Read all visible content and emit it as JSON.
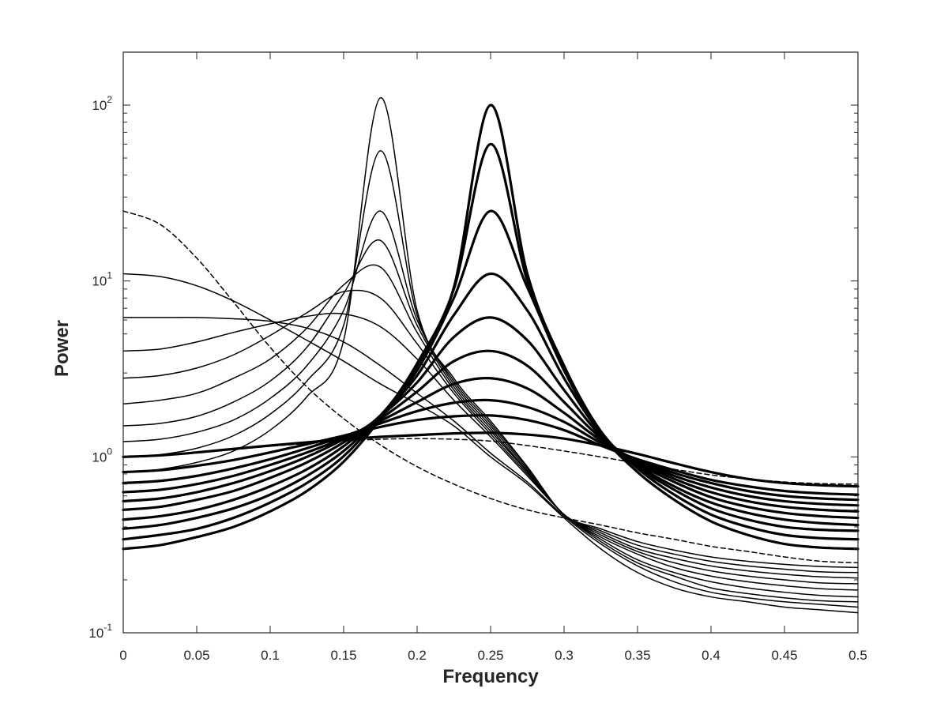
{
  "chart_data": {
    "type": "line",
    "title": "",
    "xlabel": "Frequency",
    "ylabel": "Power",
    "xlim": [
      0,
      0.5
    ],
    "ylim": [
      0.1,
      200
    ],
    "yscale": "log",
    "grid": false,
    "legend": "none",
    "colors": {
      "line": "#000000",
      "axis": "#262626",
      "background": "#ffffff"
    },
    "x_ticks": [
      "0",
      "0.05",
      "0.1",
      "0.15",
      "0.2",
      "0.25",
      "0.3",
      "0.35",
      "0.4",
      "0.45",
      "0.5"
    ],
    "y_ticks": [
      {
        "base": "10",
        "exp": "-1",
        "value": 0.1
      },
      {
        "base": "10",
        "exp": "0",
        "value": 1
      },
      {
        "base": "10",
        "exp": "1",
        "value": 10
      },
      {
        "base": "10",
        "exp": "2",
        "value": 100
      }
    ],
    "x": [
      0,
      0.025,
      0.05,
      0.075,
      0.1,
      0.125,
      0.15,
      0.175,
      0.2,
      0.225,
      0.25,
      0.275,
      0.3,
      0.325,
      0.35,
      0.375,
      0.4,
      0.425,
      0.45,
      0.475,
      0.5
    ],
    "series": [
      {
        "style": "dashed",
        "values": [
          25.0,
          21.0,
          13.5,
          7.6,
          4.2,
          2.5,
          1.65,
          1.17,
          0.88,
          0.7,
          0.58,
          0.5,
          0.45,
          0.41,
          0.37,
          0.34,
          0.31,
          0.29,
          0.27,
          0.255,
          0.25
        ]
      },
      {
        "style": "dashed",
        "values": [
          1.0,
          1.02,
          1.06,
          1.1,
          1.15,
          1.19,
          1.23,
          1.26,
          1.27,
          1.26,
          1.23,
          1.16,
          1.08,
          1.0,
          0.92,
          0.85,
          0.79,
          0.75,
          0.72,
          0.705,
          0.7
        ]
      },
      {
        "style": "thin",
        "values": [
          11.0,
          10.6,
          9.4,
          7.7,
          6.0,
          4.6,
          3.5,
          2.6,
          2.0,
          1.5,
          1.0,
          0.7,
          0.45,
          0.3,
          0.22,
          0.18,
          0.16,
          0.15,
          0.14,
          0.135,
          0.13
        ]
      },
      {
        "style": "thin",
        "values": [
          6.2,
          6.2,
          6.2,
          6.1,
          5.9,
          5.4,
          4.5,
          3.3,
          2.3,
          1.6,
          1.05,
          0.72,
          0.46,
          0.32,
          0.24,
          0.195,
          0.17,
          0.158,
          0.15,
          0.145,
          0.14
        ]
      },
      {
        "style": "thin",
        "values": [
          4.0,
          4.1,
          4.5,
          5.1,
          5.7,
          6.3,
          6.5,
          5.5,
          3.6,
          2.1,
          1.3,
          0.78,
          0.47,
          0.33,
          0.25,
          0.21,
          0.18,
          0.167,
          0.158,
          0.152,
          0.15
        ]
      },
      {
        "style": "thin",
        "values": [
          2.8,
          2.9,
          3.2,
          3.8,
          4.9,
          6.6,
          8.7,
          8.0,
          4.4,
          2.3,
          1.35,
          0.8,
          0.47,
          0.34,
          0.26,
          0.22,
          0.195,
          0.18,
          0.17,
          0.163,
          0.16
        ]
      },
      {
        "style": "thin",
        "values": [
          2.0,
          2.1,
          2.3,
          2.8,
          3.6,
          5.4,
          9.5,
          12.0,
          5.1,
          2.4,
          1.4,
          0.82,
          0.47,
          0.35,
          0.28,
          0.235,
          0.21,
          0.195,
          0.185,
          0.178,
          0.175
        ]
      },
      {
        "style": "thin",
        "values": [
          1.5,
          1.55,
          1.7,
          2.05,
          2.7,
          4.2,
          8.5,
          17.0,
          5.6,
          2.5,
          1.45,
          0.83,
          0.47,
          0.36,
          0.29,
          0.25,
          0.225,
          0.21,
          0.2,
          0.192,
          0.19
        ]
      },
      {
        "style": "thin",
        "values": [
          1.22,
          1.26,
          1.38,
          1.62,
          2.15,
          3.3,
          6.8,
          25.0,
          6.0,
          2.6,
          1.5,
          0.85,
          0.47,
          0.37,
          0.3,
          0.265,
          0.24,
          0.225,
          0.215,
          0.208,
          0.205
        ]
      },
      {
        "style": "thin",
        "values": [
          1.0,
          1.03,
          1.12,
          1.32,
          1.75,
          2.7,
          5.6,
          55.0,
          6.4,
          2.7,
          1.55,
          0.87,
          0.47,
          0.38,
          0.315,
          0.28,
          0.255,
          0.24,
          0.23,
          0.222,
          0.22
        ]
      },
      {
        "style": "thin",
        "values": [
          0.82,
          0.85,
          0.93,
          1.08,
          1.42,
          2.2,
          4.6,
          110.0,
          6.8,
          2.8,
          1.6,
          0.88,
          0.47,
          0.39,
          0.33,
          0.295,
          0.27,
          0.255,
          0.245,
          0.238,
          0.235
        ]
      },
      {
        "style": "thick",
        "values": [
          1.0,
          1.02,
          1.06,
          1.11,
          1.16,
          1.21,
          1.26,
          1.3,
          1.33,
          1.36,
          1.37,
          1.34,
          1.27,
          1.16,
          1.04,
          0.92,
          0.82,
          0.75,
          0.71,
          0.69,
          0.68
        ]
      },
      {
        "style": "thick",
        "values": [
          0.82,
          0.84,
          0.89,
          0.96,
          1.06,
          1.18,
          1.32,
          1.48,
          1.62,
          1.7,
          1.72,
          1.62,
          1.42,
          1.16,
          0.97,
          0.84,
          0.74,
          0.68,
          0.64,
          0.62,
          0.61
        ]
      },
      {
        "style": "thick",
        "values": [
          0.71,
          0.73,
          0.78,
          0.86,
          0.97,
          1.12,
          1.31,
          1.55,
          1.82,
          2.03,
          2.1,
          1.92,
          1.58,
          1.2,
          0.96,
          0.81,
          0.71,
          0.64,
          0.6,
          0.58,
          0.57
        ]
      },
      {
        "style": "thick",
        "values": [
          0.63,
          0.65,
          0.7,
          0.78,
          0.9,
          1.06,
          1.28,
          1.6,
          2.05,
          2.6,
          2.8,
          2.45,
          1.78,
          1.24,
          0.95,
          0.78,
          0.67,
          0.6,
          0.56,
          0.54,
          0.53
        ]
      },
      {
        "style": "thick",
        "values": [
          0.56,
          0.58,
          0.63,
          0.71,
          0.83,
          1.0,
          1.26,
          1.65,
          2.35,
          3.5,
          4.0,
          3.3,
          2.05,
          1.28,
          0.94,
          0.75,
          0.63,
          0.56,
          0.52,
          0.5,
          0.49
        ]
      },
      {
        "style": "thick",
        "values": [
          0.5,
          0.52,
          0.57,
          0.64,
          0.76,
          0.93,
          1.21,
          1.7,
          2.65,
          4.8,
          6.2,
          4.6,
          2.4,
          1.32,
          0.92,
          0.72,
          0.59,
          0.52,
          0.48,
          0.46,
          0.45
        ]
      },
      {
        "style": "thick",
        "values": [
          0.44,
          0.46,
          0.5,
          0.57,
          0.68,
          0.85,
          1.15,
          1.72,
          2.9,
          6.4,
          11.0,
          6.8,
          2.8,
          1.36,
          0.9,
          0.68,
          0.55,
          0.48,
          0.44,
          0.42,
          0.41
        ]
      },
      {
        "style": "thick",
        "values": [
          0.39,
          0.41,
          0.45,
          0.51,
          0.61,
          0.78,
          1.08,
          1.72,
          3.1,
          8.0,
          25.0,
          9.2,
          3.1,
          1.38,
          0.88,
          0.65,
          0.51,
          0.44,
          0.4,
          0.385,
          0.38
        ]
      },
      {
        "style": "thick",
        "values": [
          0.34,
          0.36,
          0.39,
          0.45,
          0.55,
          0.71,
          1.01,
          1.7,
          3.3,
          9.2,
          100.0,
          11.0,
          3.3,
          1.4,
          0.86,
          0.61,
          0.47,
          0.4,
          0.36,
          0.345,
          0.34
        ]
      },
      {
        "style": "thick",
        "values": [
          0.3,
          0.315,
          0.35,
          0.4,
          0.49,
          0.64,
          0.94,
          1.65,
          3.4,
          9.0,
          60.0,
          10.0,
          3.2,
          1.36,
          0.82,
          0.57,
          0.43,
          0.36,
          0.32,
          0.305,
          0.3
        ]
      }
    ]
  }
}
